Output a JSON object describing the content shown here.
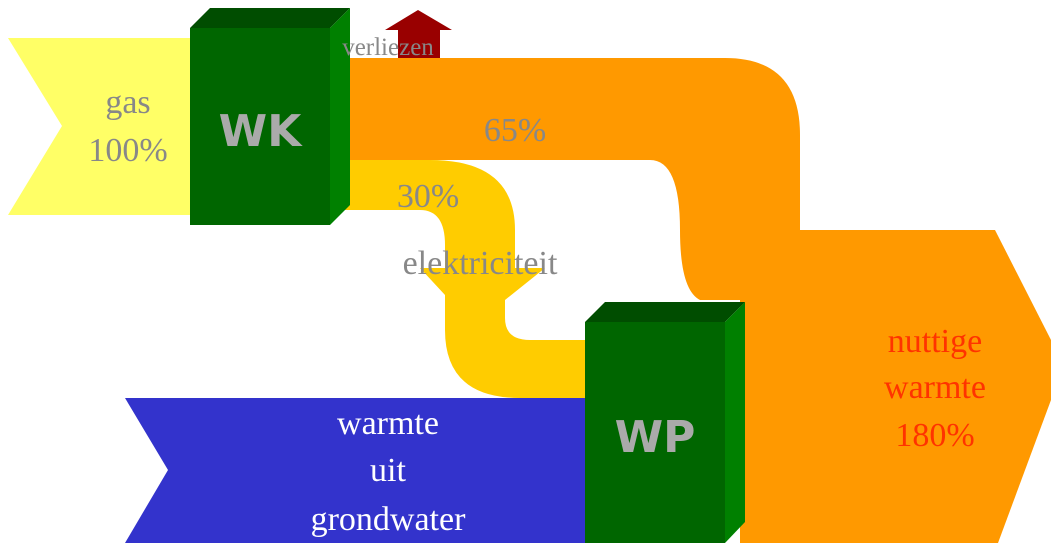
{
  "diagram": {
    "gas_input": {
      "line1": "gas",
      "line2": "100%"
    },
    "wk_box": {
      "label": "WK"
    },
    "wp_box": {
      "label": "WP"
    },
    "losses_label": "verliezen",
    "heat_flow_label": "65%",
    "electricity_pct": "30%",
    "electricity_label": "elektriciteit",
    "groundwater_input": {
      "line1": "warmte",
      "line2": "uit",
      "line3": "grondwater"
    },
    "useful_heat_output": {
      "line1": "nuttige",
      "line2": "warmte",
      "line3": "180%"
    }
  },
  "colors": {
    "gas": "#ffff66",
    "heat": "#ff9900",
    "electricity": "#ffcc00",
    "groundwater": "#3333cc",
    "box_front": "#006600",
    "box_top": "#004d00",
    "box_side": "#008000",
    "box_label": "#aaaaaa",
    "losses": "#990000",
    "flow_label": "#888888",
    "output_label": "#ff3300",
    "white_label": "#ffffff"
  }
}
